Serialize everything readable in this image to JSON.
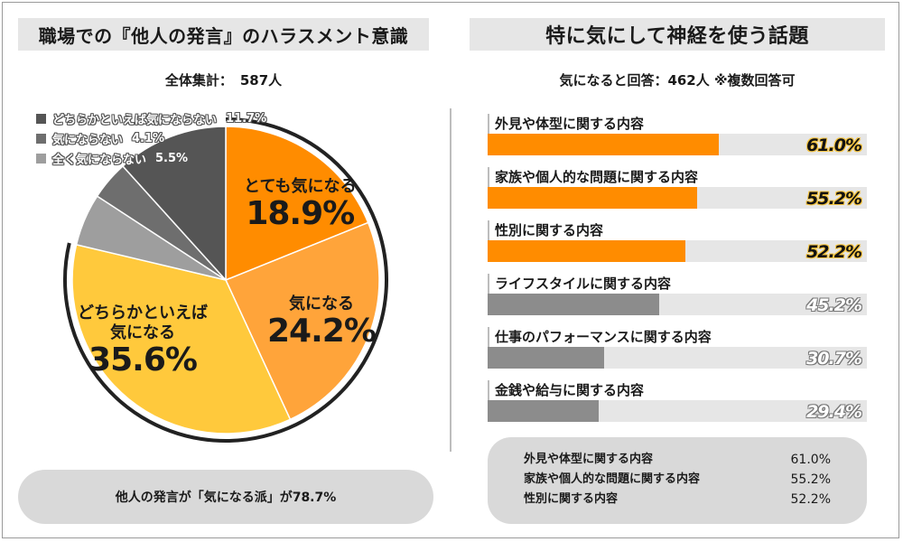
{
  "left_panel": {
    "title": "職場での『他人の発言』のハラスメント意識",
    "subtitle_label": "全体集計：",
    "subtitle_count": "587人",
    "summary": "他人の発言が「気になる派」が78.7%"
  },
  "right_panel": {
    "title": "特に気にして神経を使う話題",
    "subtitle": "気になると回答：462人 ※複数回答可",
    "summary_items": [
      {
        "label": "外見や体型に関する内容",
        "value": "61.0%"
      },
      {
        "label": "家族や個人的な問題に関する内容",
        "value": "55.2%"
      },
      {
        "label": "性別に関する内容",
        "value": "52.2%"
      }
    ]
  },
  "colors": {
    "orange": "#ff8c00",
    "light_orange": "#ffa43a",
    "yellow": "#ffc93c",
    "gray1": "#9e9e9e",
    "gray2": "#6e6e6e",
    "gray3": "#555555",
    "bar_orange": "#ff8c00",
    "bar_gray": "#8c8c8c"
  },
  "chart_data": [
    {
      "type": "pie",
      "title": "職場での『他人の発言』のハラスメント意識",
      "slices": [
        {
          "label": "とても気になる",
          "value": 18.9,
          "display": "18.9%",
          "color": "#ff8c00"
        },
        {
          "label": "気になる",
          "value": 24.2,
          "display": "24.2%",
          "color": "#ffa43a"
        },
        {
          "label": "どちらかといえば気になる",
          "value": 35.6,
          "display": "35.6%",
          "color": "#ffc93c"
        },
        {
          "label": "全く気にならない",
          "value": 5.5,
          "display": "5.5%",
          "color": "#9e9e9e"
        },
        {
          "label": "気にならない",
          "value": 4.1,
          "display": "4.1%",
          "color": "#6e6e6e"
        },
        {
          "label": "どちらかといえば気にならない",
          "value": 11.7,
          "display": "11.7%",
          "color": "#555555"
        }
      ],
      "legend": [
        {
          "label": "どちらかといえば気にならない",
          "value": "11.7%",
          "color": "#555555"
        },
        {
          "label": "気にならない",
          "value": "4.1%",
          "color": "#6e6e6e"
        },
        {
          "label": "全く気にならない",
          "value": "5.5%",
          "color": "#9e9e9e"
        }
      ],
      "slice_labels": [
        {
          "name": "とても気になる",
          "pct": "18.9%"
        },
        {
          "name": "気になる",
          "pct": "24.2%"
        },
        {
          "name_line1": "どちらかといえば",
          "name_line2": "気になる",
          "pct": "35.6%"
        }
      ]
    },
    {
      "type": "bar",
      "title": "特に気にして神経を使う話題",
      "orientation": "horizontal",
      "xlim": [
        0,
        100
      ],
      "categories": [
        "外見や体型に関する内容",
        "家族や個人的な問題に関する内容",
        "性別に関する内容",
        "ライフスタイルに関する内容",
        "仕事のパフォーマンスに関する内容",
        "金銭や給与に関する内容"
      ],
      "values": [
        61.0,
        55.2,
        52.2,
        45.2,
        30.7,
        29.4
      ],
      "value_labels": [
        "61.0%",
        "55.2%",
        "52.2%",
        "45.2%",
        "30.7%",
        "29.4%"
      ],
      "highlight_top": 3
    }
  ]
}
